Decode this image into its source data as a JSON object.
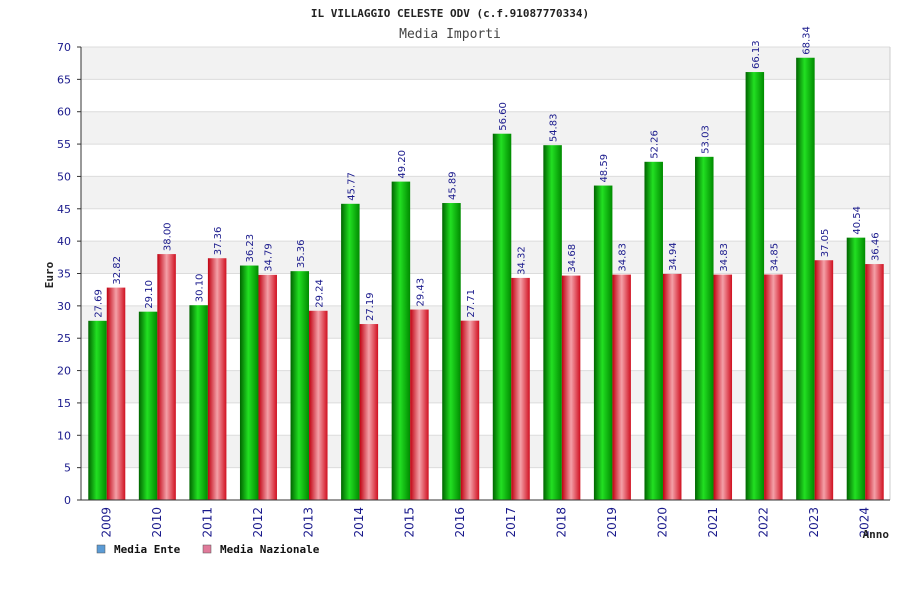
{
  "chart_data": {
    "type": "bar",
    "title": "IL VILLAGGIO CELESTE ODV (c.f.91087770334)",
    "subtitle": "Media Importi",
    "xlabel": "Anno",
    "ylabel": "Euro",
    "ylim": [
      0,
      70
    ],
    "ytick_step": 5,
    "grid": true,
    "legend_position": "bottom-left",
    "categories": [
      "2009",
      "2010",
      "2011",
      "2012",
      "2013",
      "2014",
      "2015",
      "2016",
      "2017",
      "2018",
      "2019",
      "2020",
      "2021",
      "2022",
      "2023",
      "2024"
    ],
    "series": [
      {
        "name": "Media Ente",
        "color": "#00b800",
        "legend_color": "#5b9bd5",
        "values": [
          27.69,
          29.1,
          30.1,
          36.23,
          35.36,
          45.77,
          49.2,
          45.89,
          56.6,
          54.83,
          48.59,
          52.26,
          53.03,
          66.13,
          68.34,
          40.54
        ],
        "labels": [
          "27.69",
          "29.10",
          "30.10",
          "36.23",
          "35.36",
          "45.77",
          "49.20",
          "45.89",
          "56.60",
          "54.83",
          "48.59",
          "52.26",
          "53.03",
          "66.13",
          "68.34",
          "40.54"
        ]
      },
      {
        "name": "Media Nazionale",
        "color": "#e8323c",
        "legend_color": "#e07a9a",
        "values": [
          32.82,
          38.0,
          37.36,
          34.79,
          29.24,
          27.19,
          29.43,
          27.71,
          34.32,
          34.68,
          34.83,
          34.94,
          34.83,
          34.85,
          37.05,
          36.46
        ],
        "labels": [
          "32.82",
          "38.00",
          "37.36",
          "34.79",
          "29.24",
          "27.19",
          "29.43",
          "27.71",
          "34.32",
          "34.68",
          "34.83",
          "34.94",
          "34.83",
          "34.85",
          "37.05",
          "36.46"
        ]
      }
    ]
  }
}
